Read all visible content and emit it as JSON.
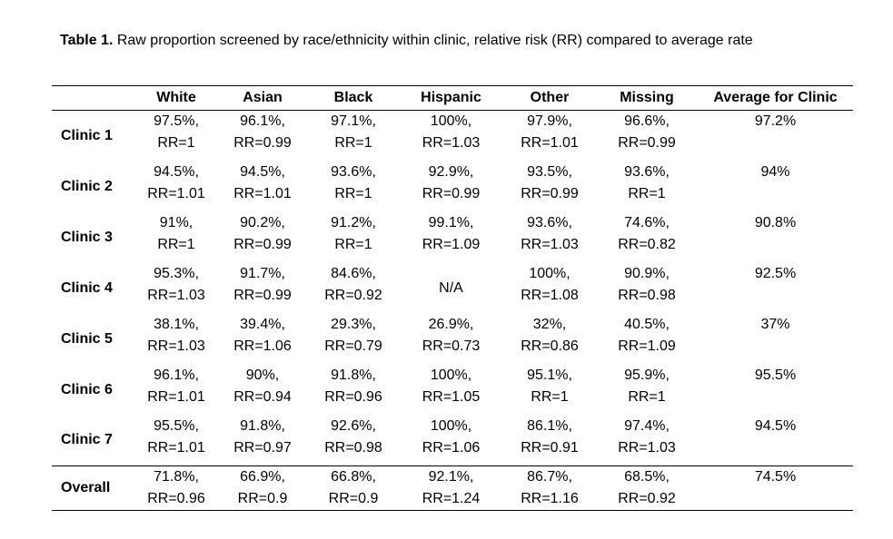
{
  "caption": {
    "label": "Table 1.",
    "text": "Raw proportion screened by race/ethnicity within clinic, relative risk (RR) compared to average rate"
  },
  "headers": [
    "",
    "White",
    "Asian",
    "Black",
    "Hispanic",
    "Other",
    "Missing",
    "Average for Clinic"
  ],
  "rows": [
    {
      "label": "Clinic 1",
      "cells": [
        {
          "pct": "97.5%,",
          "rr": "RR=1"
        },
        {
          "pct": "96.1%,",
          "rr": "RR=0.99"
        },
        {
          "pct": "97.1%,",
          "rr": "RR=1"
        },
        {
          "pct": "100%,",
          "rr": "RR=1.03"
        },
        {
          "pct": "97.9%,",
          "rr": "RR=1.01"
        },
        {
          "pct": "96.6%,",
          "rr": "RR=0.99"
        }
      ],
      "average": "97.2%"
    },
    {
      "label": "Clinic 2",
      "cells": [
        {
          "pct": "94.5%,",
          "rr": "RR=1.01"
        },
        {
          "pct": "94.5%,",
          "rr": "RR=1.01"
        },
        {
          "pct": "93.6%,",
          "rr": "RR=1"
        },
        {
          "pct": "92.9%,",
          "rr": "RR=0.99"
        },
        {
          "pct": "93.5%,",
          "rr": "RR=0.99"
        },
        {
          "pct": "93.6%,",
          "rr": "RR=1"
        }
      ],
      "average": "94%"
    },
    {
      "label": "Clinic 3",
      "cells": [
        {
          "pct": "91%,",
          "rr": "RR=1"
        },
        {
          "pct": "90.2%,",
          "rr": "RR=0.99"
        },
        {
          "pct": "91.2%,",
          "rr": "RR=1"
        },
        {
          "pct": "99.1%,",
          "rr": "RR=1.09"
        },
        {
          "pct": "93.6%,",
          "rr": "RR=1.03"
        },
        {
          "pct": "74.6%,",
          "rr": "RR=0.82"
        }
      ],
      "average": "90.8%"
    },
    {
      "label": "Clinic 4",
      "cells": [
        {
          "pct": "95.3%,",
          "rr": "RR=1.03"
        },
        {
          "pct": "91.7%,",
          "rr": "RR=0.99"
        },
        {
          "pct": "84.6%,",
          "rr": "RR=0.92"
        },
        {
          "single": "N/A"
        },
        {
          "pct": "100%,",
          "rr": "RR=1.08"
        },
        {
          "pct": "90.9%,",
          "rr": "RR=0.98"
        }
      ],
      "average": "92.5%"
    },
    {
      "label": "Clinic 5",
      "cells": [
        {
          "pct": "38.1%,",
          "rr": "RR=1.03"
        },
        {
          "pct": "39.4%,",
          "rr": "RR=1.06"
        },
        {
          "pct": "29.3%,",
          "rr": "RR=0.79"
        },
        {
          "pct": "26.9%,",
          "rr": "RR=0.73"
        },
        {
          "pct": "32%,",
          "rr": "RR=0.86"
        },
        {
          "pct": "40.5%,",
          "rr": "RR=1.09"
        }
      ],
      "average": "37%"
    },
    {
      "label": "Clinic 6",
      "cells": [
        {
          "pct": "96.1%,",
          "rr": "RR=1.01"
        },
        {
          "pct": "90%,",
          "rr": "RR=0.94"
        },
        {
          "pct": "91.8%,",
          "rr": "RR=0.96"
        },
        {
          "pct": "100%,",
          "rr": "RR=1.05"
        },
        {
          "pct": "95.1%,",
          "rr": "RR=1"
        },
        {
          "pct": "95.9%,",
          "rr": "RR=1"
        }
      ],
      "average": "95.5%"
    },
    {
      "label": "Clinic 7",
      "cells": [
        {
          "pct": "95.5%,",
          "rr": "RR=1.01"
        },
        {
          "pct": "91.8%,",
          "rr": "RR=0.97"
        },
        {
          "pct": "92.6%,",
          "rr": "RR=0.98"
        },
        {
          "pct": "100%,",
          "rr": "RR=1.06"
        },
        {
          "pct": "86.1%,",
          "rr": "RR=0.91"
        },
        {
          "pct": "97.4%,",
          "rr": "RR=1.03"
        }
      ],
      "average": "94.5%"
    },
    {
      "label": "Overall",
      "cells": [
        {
          "pct": "71.8%,",
          "rr": "RR=0.96"
        },
        {
          "pct": "66.9%,",
          "rr": "RR=0.9"
        },
        {
          "pct": "66.8%,",
          "rr": "RR=0.9"
        },
        {
          "pct": "92.1%,",
          "rr": "RR=1.24"
        },
        {
          "pct": "86.7%,",
          "rr": "RR=1.16"
        },
        {
          "pct": "68.5%,",
          "rr": "RR=0.92"
        }
      ],
      "average": "74.5%"
    }
  ]
}
